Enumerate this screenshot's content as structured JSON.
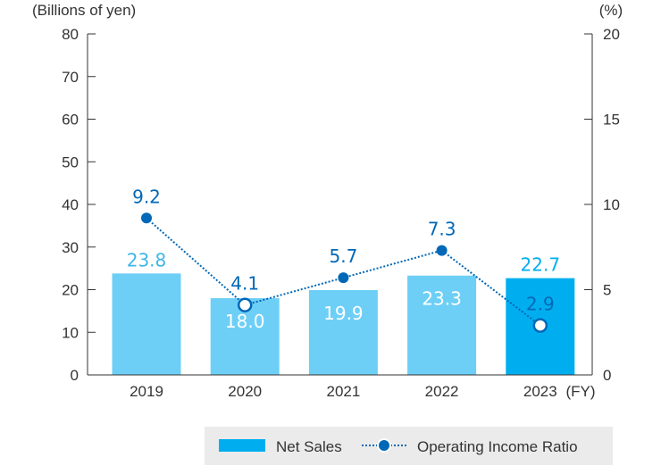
{
  "chart_data": {
    "type": "bar",
    "categories": [
      "2019",
      "2020",
      "2021",
      "2022",
      "2023"
    ],
    "x_unit": "(FY)",
    "left_axis": {
      "unit": "(Billions of yen)",
      "range": [
        0,
        80
      ],
      "ticks": [
        0,
        10,
        20,
        30,
        40,
        50,
        60,
        70,
        80
      ]
    },
    "right_axis": {
      "unit": "(%)",
      "range": [
        0,
        20
      ],
      "ticks": [
        0,
        5,
        10,
        15,
        20
      ]
    },
    "series": [
      {
        "name": "Net Sales",
        "type": "bar",
        "axis": "left",
        "values": [
          23.8,
          18.0,
          19.9,
          23.3,
          22.7
        ],
        "labels": [
          "23.8",
          "18.0",
          "19.9",
          "23.3",
          "22.7"
        ],
        "label_placement": [
          "above",
          "inside",
          "inside",
          "inside",
          "above"
        ],
        "colors": [
          "#6dcff6",
          "#6dcff6",
          "#6dcff6",
          "#6dcff6",
          "#00aeef"
        ]
      },
      {
        "name": "Operating Income Ratio",
        "type": "line",
        "axis": "right",
        "values": [
          9.2,
          4.1,
          5.7,
          7.3,
          2.9
        ],
        "labels": [
          "9.2",
          "4.1",
          "5.7",
          "7.3",
          "2.9"
        ],
        "line_style": "dotted",
        "color": "#0068b7",
        "hollow_markers": [
          false,
          true,
          false,
          false,
          true
        ]
      }
    ],
    "grid": false,
    "legend_position": "bottom-right"
  },
  "colors": {
    "bar_light": "#6dcff6",
    "bar_highlight": "#00aeef",
    "line": "#0068b7",
    "light_label": "#3fb6e8",
    "axis": "#333333",
    "legend_bg": "#ebebeb"
  }
}
